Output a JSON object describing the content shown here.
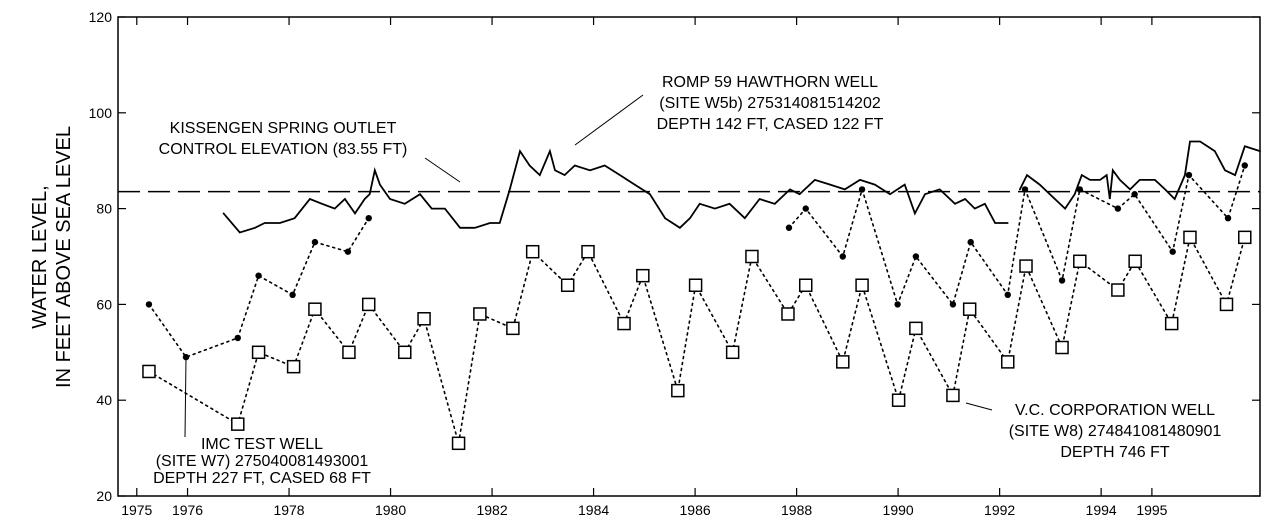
{
  "chart_data": {
    "type": "line",
    "y_label": [
      "WATER LEVEL,",
      "IN FEET ABOVE SEA LEVEL"
    ],
    "xlim": [
      1974.63,
      1997.13
    ],
    "ylim": [
      20,
      120
    ],
    "xticks": [
      1975,
      1976,
      1978,
      1980,
      1982,
      1984,
      1986,
      1988,
      1990,
      1992,
      1994,
      1995
    ],
    "yticks": [
      20,
      40,
      60,
      80,
      100,
      120
    ],
    "reference_line": {
      "value": 83.55,
      "linestyle": "dashed",
      "color": "#000",
      "label": [
        "KISSENGEN SPRING OUTLET",
        "CONTROL ELEVATION (83.55 FT)"
      ]
    },
    "series": [
      {
        "label": [
          "IMC TEST WELL",
          "(SITE W7) 275040081493001",
          "DEPTH 227 FT, CASED 68 FT"
        ],
        "marker": "circle",
        "linestyle": "dotted",
        "color": "#000",
        "x": [
          1975.24,
          1975.97,
          1976.99,
          1977.4,
          1978.07,
          1978.51,
          1979.16,
          1979.57,
          1979.9,
          1987.85,
          1988.18,
          1988.91,
          1989.29,
          1989.99,
          1990.35,
          1991.08,
          1991.43,
          1992.16,
          1992.5,
          1993.23,
          1993.58,
          1994.33,
          1994.66,
          1995.41,
          1995.73,
          1996.5,
          1996.83
        ],
        "values": [
          60,
          49,
          53,
          66,
          62,
          73,
          71,
          78,
          null,
          76,
          80,
          70,
          84,
          60,
          70,
          60,
          73,
          62,
          84,
          65,
          84,
          80,
          83,
          71,
          87,
          78,
          89
        ]
      },
      {
        "label": [
          "V.C. CORPORATION WELL",
          "(SITE W8) 274841081480901",
          "DEPTH 746 FT"
        ],
        "marker": "square",
        "linestyle": "dotted",
        "color": "#000",
        "x": [
          1975.24,
          1976.99,
          1977.4,
          1978.09,
          1978.51,
          1979.18,
          1979.57,
          1980.28,
          1980.66,
          1981.34,
          1981.76,
          1982.41,
          1982.8,
          1983.49,
          1983.89,
          1984.6,
          1984.97,
          1985.66,
          1986.01,
          1986.74,
          1987.12,
          1987.83,
          1988.18,
          1988.91,
          1989.29,
          1990.01,
          1990.35,
          1991.08,
          1991.41,
          1992.16,
          1992.52,
          1993.23,
          1993.58,
          1994.33,
          1994.67,
          1995.39,
          1995.75,
          1996.47,
          1996.83
        ],
        "values": [
          46,
          35,
          50,
          47,
          59,
          50,
          60,
          50,
          57,
          31,
          58,
          55,
          71,
          64,
          71,
          56,
          66,
          42,
          64,
          50,
          70,
          58,
          64,
          48,
          64,
          40,
          55,
          41,
          59,
          48,
          68,
          51,
          69,
          63,
          69,
          56,
          74,
          60,
          74
        ]
      },
      {
        "label": [
          "ROMP 59 HAWTHORN WELL",
          "(SITE W5b) 275314081514202",
          "DEPTH 142 FT, CASED 122 FT"
        ],
        "marker": "none",
        "linestyle": "solid",
        "color": "#000",
        "x": [
          1976.71,
          1977.03,
          1977.33,
          1977.52,
          1977.82,
          1978.11,
          1978.41,
          1978.65,
          1978.9,
          1979.1,
          1979.3,
          1979.49,
          1979.59,
          1979.69,
          1979.79,
          1979.99,
          1980.28,
          1980.58,
          1980.81,
          1981.07,
          1981.37,
          1981.66,
          1981.96,
          1982.15,
          1982.35,
          1982.55,
          1982.74,
          1982.94,
          1983.14,
          1983.24,
          1983.43,
          1983.63,
          1983.93,
          1984.22,
          1984.52,
          1984.81,
          1985.11,
          1985.41,
          1985.7,
          1985.9,
          1986.09,
          1986.39,
          1986.68,
          1986.98,
          1987.27,
          1987.57,
          1987.87,
          1988.06,
          1988.36,
          1988.66,
          1988.95,
          1989.25,
          1989.54,
          1989.84,
          1990.13,
          1990.33,
          1990.53,
          1990.82,
          1991.12,
          1991.32,
          1991.51,
          1991.71,
          1991.91,
          1992.16,
          1992.28,
          1992.4,
          1992.54,
          1992.79,
          1993.09,
          1993.29,
          1993.48,
          1993.62,
          1993.78,
          1993.98,
          1994.11,
          1994.17,
          1994.23,
          1994.37,
          1994.57,
          1994.76,
          1995.06,
          1995.26,
          1995.45,
          1995.65,
          1995.75,
          1995.95,
          1996.24,
          1996.44,
          1996.64,
          1996.83,
          1997.13
        ],
        "values": [
          79,
          75,
          76,
          77,
          77,
          78,
          82,
          81,
          80,
          82,
          79,
          82,
          83,
          88,
          85,
          82,
          81,
          83,
          80,
          80,
          76,
          76,
          77,
          77,
          84,
          92,
          89,
          87,
          92,
          88,
          87,
          89,
          88,
          89,
          87,
          85,
          83,
          78,
          76,
          78,
          81,
          80,
          81,
          78,
          82,
          81,
          84,
          83,
          86,
          85,
          84,
          86,
          85,
          83,
          85,
          79,
          83,
          84,
          81,
          82,
          80,
          81,
          77,
          77,
          null,
          84,
          87,
          85,
          82,
          80,
          83,
          87,
          86,
          86,
          87,
          82,
          88,
          86,
          84,
          86,
          86,
          84,
          82,
          87,
          94,
          94,
          92,
          88,
          87,
          93,
          92
        ]
      }
    ]
  }
}
